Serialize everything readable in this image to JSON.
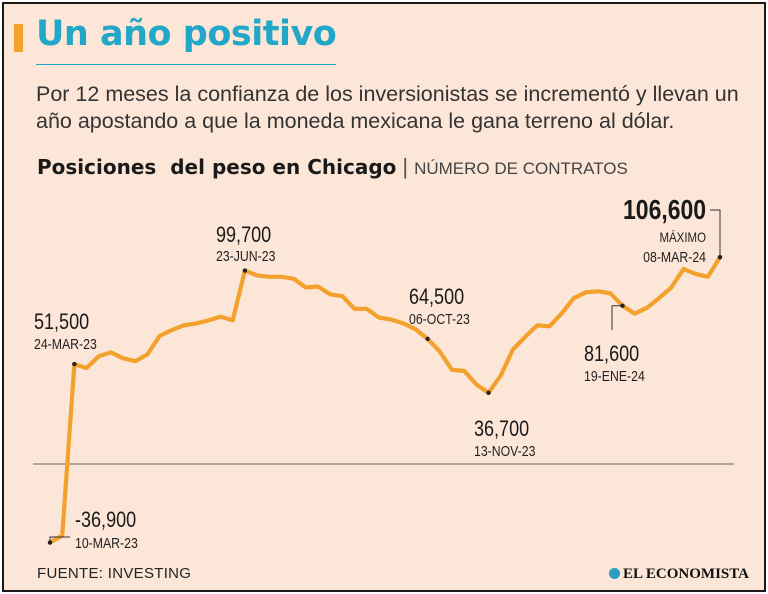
{
  "header": {
    "title": "Un año positivo",
    "subtitle": "Por 12 meses la confianza de los inversionistas se incrementó y llevan un año apostando a que la moneda mexicana le gana terreno al dólar."
  },
  "chart_heading": {
    "title": "Posiciones  del peso en Chicago",
    "separator": "|",
    "unit": "NÚMERO DE CONTRATOS"
  },
  "chart_data": {
    "type": "line",
    "title": "Posiciones del peso en Chicago",
    "ylabel": "NÚMERO DE CONTRATOS",
    "ylim": [
      -45000,
      125000
    ],
    "zero_line": true,
    "color": "#f3a12c",
    "series": [
      {
        "name": "Posiciones del peso en Chicago",
        "values": [
          -40500,
          -36900,
          51500,
          49500,
          55500,
          57500,
          54500,
          53000,
          56500,
          66000,
          69000,
          71500,
          72500,
          74000,
          76000,
          74000,
          99700,
          97200,
          96500,
          96500,
          95500,
          91000,
          91500,
          87500,
          86500,
          80000,
          80000,
          75500,
          74500,
          72500,
          69500,
          64500,
          58000,
          48500,
          48000,
          41000,
          36700,
          45500,
          59000,
          65500,
          71500,
          71000,
          77500,
          85500,
          88500,
          89000,
          88000,
          81600,
          77500,
          80500,
          85500,
          91000,
          100500,
          98000,
          96500,
          106600
        ]
      }
    ],
    "annotations": [
      {
        "value": "-36,900",
        "date": "10-MAR-23"
      },
      {
        "value": "51,500",
        "date": "24-MAR-23"
      },
      {
        "value": "99,700",
        "date": "23-JUN-23"
      },
      {
        "value": "64,500",
        "date": "06-OCT-23"
      },
      {
        "value": "36,700",
        "date": "13-NOV-23"
      },
      {
        "value": "81,600",
        "date": "19-ENE-24"
      },
      {
        "value": "106,600",
        "note": "MÁXIMO",
        "date": "08-MAR-24"
      }
    ]
  },
  "footer": {
    "source": "FUENTE: INVESTING",
    "brand": "EL ECONOMISTA",
    "brand_icon": "globe-icon"
  }
}
